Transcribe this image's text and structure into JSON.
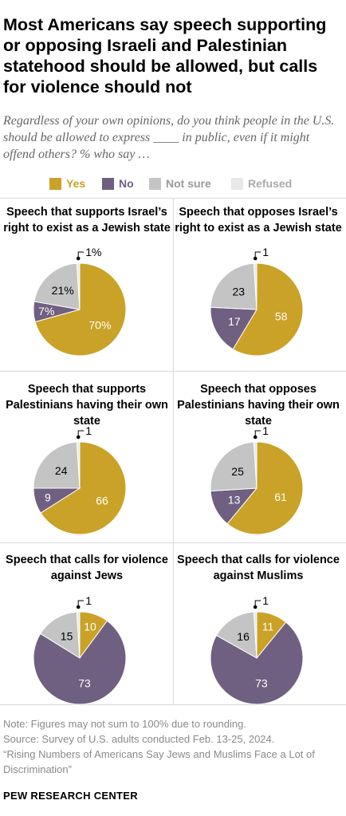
{
  "title": "Most Americans say speech supporting or opposing Israeli and Palestinian statehood should be allowed, but calls for violence should not",
  "subtitle": "Regardless of your own opinions, do you think people in the U.S. should be allowed to express ____ in public, even if it might offend others? % who say …",
  "colors": {
    "yes": "#c9a227",
    "no": "#6f5f80",
    "not_sure": "#c4c4c4",
    "refused": "#e8e8e8"
  },
  "legend": [
    {
      "key": "yes",
      "label": "Yes"
    },
    {
      "key": "no",
      "label": "No"
    },
    {
      "key": "not_sure",
      "label": "Not sure"
    },
    {
      "key": "refused",
      "label": "Refused"
    }
  ],
  "chart_data": [
    {
      "type": "pie",
      "title": "Speech that supports Israel’s right to exist as a Jewish state",
      "categories": [
        "Yes",
        "No",
        "Not sure",
        "Refused"
      ],
      "values": [
        70,
        7,
        21,
        1
      ],
      "labels": [
        "70%",
        "7%",
        "21%",
        "1%"
      ]
    },
    {
      "type": "pie",
      "title": "Speech that opposes Israel’s right to exist as a Jewish state",
      "categories": [
        "Yes",
        "No",
        "Not sure",
        "Refused"
      ],
      "values": [
        58,
        17,
        23,
        1
      ],
      "labels": [
        "58",
        "17",
        "23",
        "1"
      ]
    },
    {
      "type": "pie",
      "title": "Speech that supports Palestinians having their own state",
      "categories": [
        "Yes",
        "No",
        "Not sure",
        "Refused"
      ],
      "values": [
        66,
        9,
        24,
        1
      ],
      "labels": [
        "66",
        "9",
        "24",
        "1"
      ]
    },
    {
      "type": "pie",
      "title": "Speech that opposes Palestinians having their own state",
      "categories": [
        "Yes",
        "No",
        "Not sure",
        "Refused"
      ],
      "values": [
        61,
        13,
        25,
        1
      ],
      "labels": [
        "61",
        "13",
        "25",
        "1"
      ]
    },
    {
      "type": "pie",
      "title": "Speech that calls for violence against Jews",
      "categories": [
        "Yes",
        "No",
        "Not sure",
        "Refused"
      ],
      "values": [
        10,
        73,
        15,
        1
      ],
      "labels": [
        "10",
        "73",
        "15",
        "1"
      ]
    },
    {
      "type": "pie",
      "title": "Speech that calls for violence against Muslims",
      "categories": [
        "Yes",
        "No",
        "Not sure",
        "Refused"
      ],
      "values": [
        11,
        73,
        16,
        1
      ],
      "labels": [
        "11",
        "73",
        "16",
        "1"
      ]
    }
  ],
  "notes": {
    "note": "Note: Figures may not sum to 100% due to rounding.",
    "source": "Source: Survey of U.S. adults conducted Feb. 13-25, 2024.",
    "report": "“Rising Numbers of Americans Say Jews and Muslims Face a Lot of Discrimination”"
  },
  "footer": "PEW RESEARCH CENTER"
}
